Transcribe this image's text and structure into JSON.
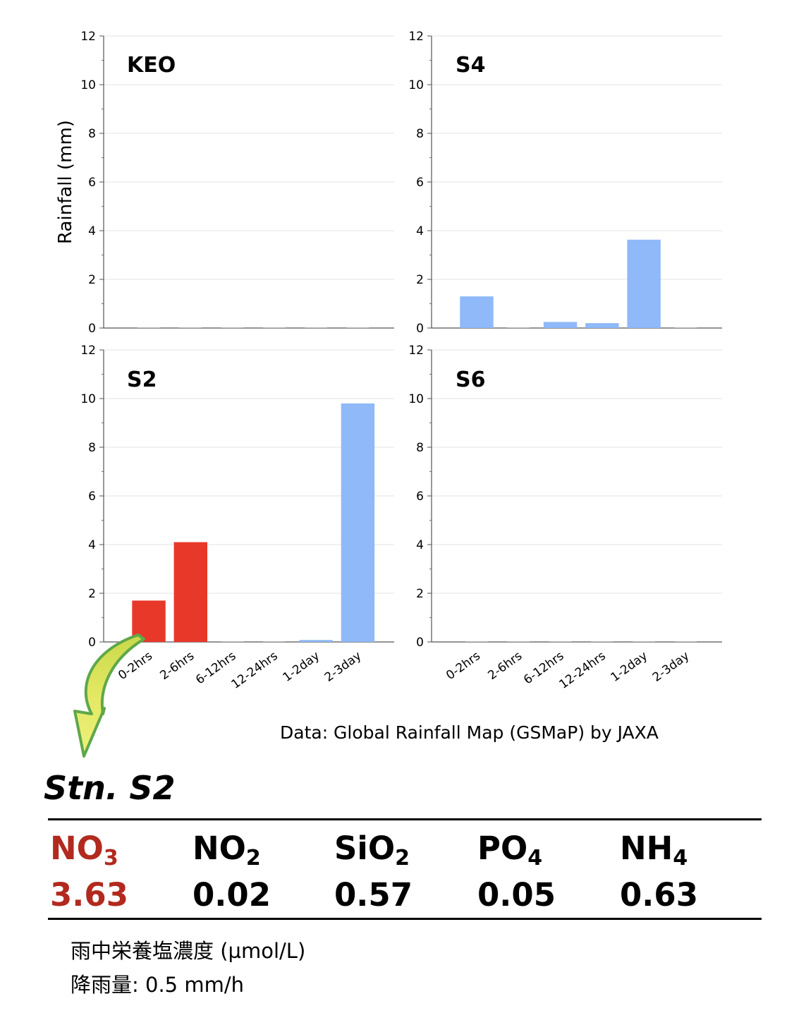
{
  "chart_data": [
    {
      "type": "bar",
      "title": "KEO",
      "ylabel": "Rainfall (mm)",
      "xlabel": "",
      "ylim": [
        0,
        12
      ],
      "yticks": [
        0,
        2,
        4,
        6,
        8,
        10,
        12
      ],
      "categories": [
        "0-2hrs",
        "2-6hrs",
        "6-12hrs",
        "12-24hrs",
        "1-2day",
        "2-3day"
      ],
      "values": [
        0,
        0,
        0,
        0,
        0,
        0
      ],
      "bar_colors": [
        "#8fb9f8",
        "#8fb9f8",
        "#8fb9f8",
        "#8fb9f8",
        "#8fb9f8",
        "#8fb9f8"
      ],
      "show_xticklabels": false
    },
    {
      "type": "bar",
      "title": "S4",
      "ylabel": "",
      "xlabel": "",
      "ylim": [
        0,
        12
      ],
      "yticks": [
        0,
        2,
        4,
        6,
        8,
        10,
        12
      ],
      "categories": [
        "0-2hrs",
        "2-6hrs",
        "6-12hrs",
        "12-24hrs",
        "1-2day",
        "2-3day"
      ],
      "values": [
        1.3,
        0,
        0.25,
        0.2,
        3.63,
        0
      ],
      "bar_colors": [
        "#8fb9f8",
        "#8fb9f8",
        "#8fb9f8",
        "#8fb9f8",
        "#8fb9f8",
        "#8fb9f8"
      ],
      "show_xticklabels": false
    },
    {
      "type": "bar",
      "title": "S2",
      "ylabel": "",
      "xlabel": "",
      "ylim": [
        0,
        12
      ],
      "yticks": [
        0,
        2,
        4,
        6,
        8,
        10,
        12
      ],
      "categories": [
        "0-2hrs",
        "2-6hrs",
        "6-12hrs",
        "12-24hrs",
        "1-2day",
        "2-3day"
      ],
      "values": [
        1.7,
        4.1,
        0,
        0,
        0.08,
        9.8
      ],
      "bar_colors": [
        "#e8382a",
        "#e8382a",
        "#8fb9f8",
        "#8fb9f8",
        "#8fb9f8",
        "#8fb9f8"
      ],
      "show_xticklabels": true
    },
    {
      "type": "bar",
      "title": "S6",
      "ylabel": "",
      "xlabel": "",
      "ylim": [
        0,
        12
      ],
      "yticks": [
        0,
        2,
        4,
        6,
        8,
        10,
        12
      ],
      "categories": [
        "0-2hrs",
        "2-6hrs",
        "6-12hrs",
        "12-24hrs",
        "1-2day",
        "2-3day"
      ],
      "values": [
        0,
        0,
        0,
        0,
        0,
        0
      ],
      "bar_colors": [
        "#8fb9f8",
        "#8fb9f8",
        "#8fb9f8",
        "#8fb9f8",
        "#8fb9f8",
        "#8fb9f8"
      ],
      "show_xticklabels": true
    }
  ],
  "source_note": "Data: Global Rainfall Map (GSMaP) by JAXA",
  "station_label": "Stn. S2",
  "nutrients": [
    {
      "base": "NO",
      "sub": "3",
      "value": "3.63",
      "color": "#b22a1e"
    },
    {
      "base": "NO",
      "sub": "2",
      "value": "0.02",
      "color": "#000000"
    },
    {
      "base": "SiO",
      "sub": "2",
      "value": "0.57",
      "color": "#000000"
    },
    {
      "base": "PO",
      "sub": "4",
      "value": "0.05",
      "color": "#000000"
    },
    {
      "base": "NH",
      "sub": "4",
      "value": "0.63",
      "color": "#000000"
    }
  ],
  "notes": {
    "concentration": "雨中栄養塩濃度  (µmol/L)",
    "rainfall_rate": "降雨量: 0.5 mm/h"
  },
  "colors": {
    "rain_bar": "#8fb9f8",
    "highlight_bar": "#e8382a",
    "arrow_fill": "#e3e864",
    "arrow_edge": "#5ea84a"
  }
}
